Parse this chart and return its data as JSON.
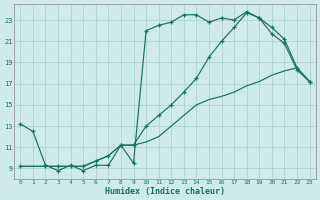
{
  "xlabel": "Humidex (Indice chaleur)",
  "background_color": "#ceeaea",
  "grid_color": "#aacece",
  "line_color": "#1a7060",
  "xlim": [
    -0.5,
    23.5
  ],
  "ylim": [
    8,
    24.5
  ],
  "yticks": [
    9,
    11,
    13,
    15,
    17,
    19,
    21,
    23
  ],
  "xticks": [
    0,
    1,
    2,
    3,
    4,
    5,
    6,
    7,
    8,
    9,
    10,
    11,
    12,
    13,
    14,
    15,
    16,
    17,
    18,
    19,
    20,
    21,
    22,
    23
  ],
  "line1_x": [
    0,
    1,
    2,
    3,
    4,
    5,
    6,
    7,
    8,
    9,
    10,
    11,
    12,
    13,
    14,
    15,
    16,
    17,
    18,
    19,
    20,
    21,
    22,
    23
  ],
  "line1_y": [
    13.2,
    12.5,
    9.3,
    8.8,
    9.3,
    8.8,
    9.3,
    9.3,
    11.2,
    9.5,
    22.0,
    22.5,
    22.8,
    23.5,
    23.5,
    22.8,
    23.2,
    23.0,
    23.8,
    23.2,
    21.7,
    20.8,
    18.3,
    17.2
  ],
  "line2_x": [
    0,
    2,
    3,
    4,
    5,
    6,
    7,
    8,
    9,
    10,
    11,
    12,
    13,
    14,
    15,
    16,
    17,
    18,
    19,
    20,
    21,
    22,
    23
  ],
  "line2_y": [
    9.2,
    9.2,
    9.2,
    9.2,
    9.2,
    9.7,
    10.2,
    11.2,
    11.2,
    13.0,
    14.0,
    15.0,
    16.2,
    17.5,
    19.5,
    21.0,
    22.3,
    23.7,
    23.2,
    22.3,
    21.2,
    18.5,
    17.2
  ],
  "line3_x": [
    0,
    2,
    3,
    4,
    5,
    6,
    7,
    8,
    9,
    10,
    11,
    12,
    13,
    14,
    15,
    16,
    17,
    18,
    19,
    20,
    21,
    22,
    23
  ],
  "line3_y": [
    9.2,
    9.2,
    9.2,
    9.2,
    9.2,
    9.7,
    10.2,
    11.2,
    11.2,
    11.5,
    12.0,
    13.0,
    14.0,
    15.0,
    15.5,
    15.8,
    16.2,
    16.8,
    17.2,
    17.8,
    18.2,
    18.5,
    17.2
  ]
}
